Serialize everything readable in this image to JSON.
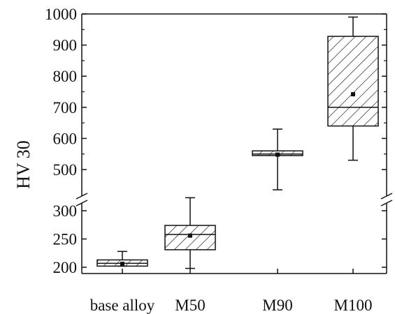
{
  "chart_data": {
    "type": "box",
    "ylabel": "HV 30",
    "y_axis_break": {
      "lower_range": [
        190,
        330
      ],
      "upper_range": [
        430,
        1000
      ]
    },
    "categories": [
      "base alloy",
      "M50",
      "M90",
      "M100"
    ],
    "boxes": [
      {
        "category": "base alloy",
        "whisker_low": 202,
        "q1": 202,
        "median": 207,
        "q3": 213,
        "whisker_high": 228,
        "mean": 206
      },
      {
        "category": "M50",
        "whisker_low": 198,
        "q1": 231,
        "median": 258,
        "q3": 274,
        "whisker_high": 323,
        "mean": 256
      },
      {
        "category": "M90",
        "whisker_low": 435,
        "q1": 545,
        "median": 550,
        "q3": 560,
        "whisker_high": 630,
        "mean": 548
      },
      {
        "category": "M100",
        "whisker_low": 530,
        "q1": 640,
        "median": 700,
        "q3": 928,
        "whisker_high": 990,
        "mean": 742
      }
    ],
    "y_ticks_lower": [
      200,
      250,
      300
    ],
    "y_ticks_upper": [
      500,
      600,
      700,
      800,
      900,
      1000
    ],
    "grid": false,
    "box_fill": "diagonal-hatch",
    "colors": {
      "ink": "#111111",
      "background": "#ffffff"
    }
  }
}
